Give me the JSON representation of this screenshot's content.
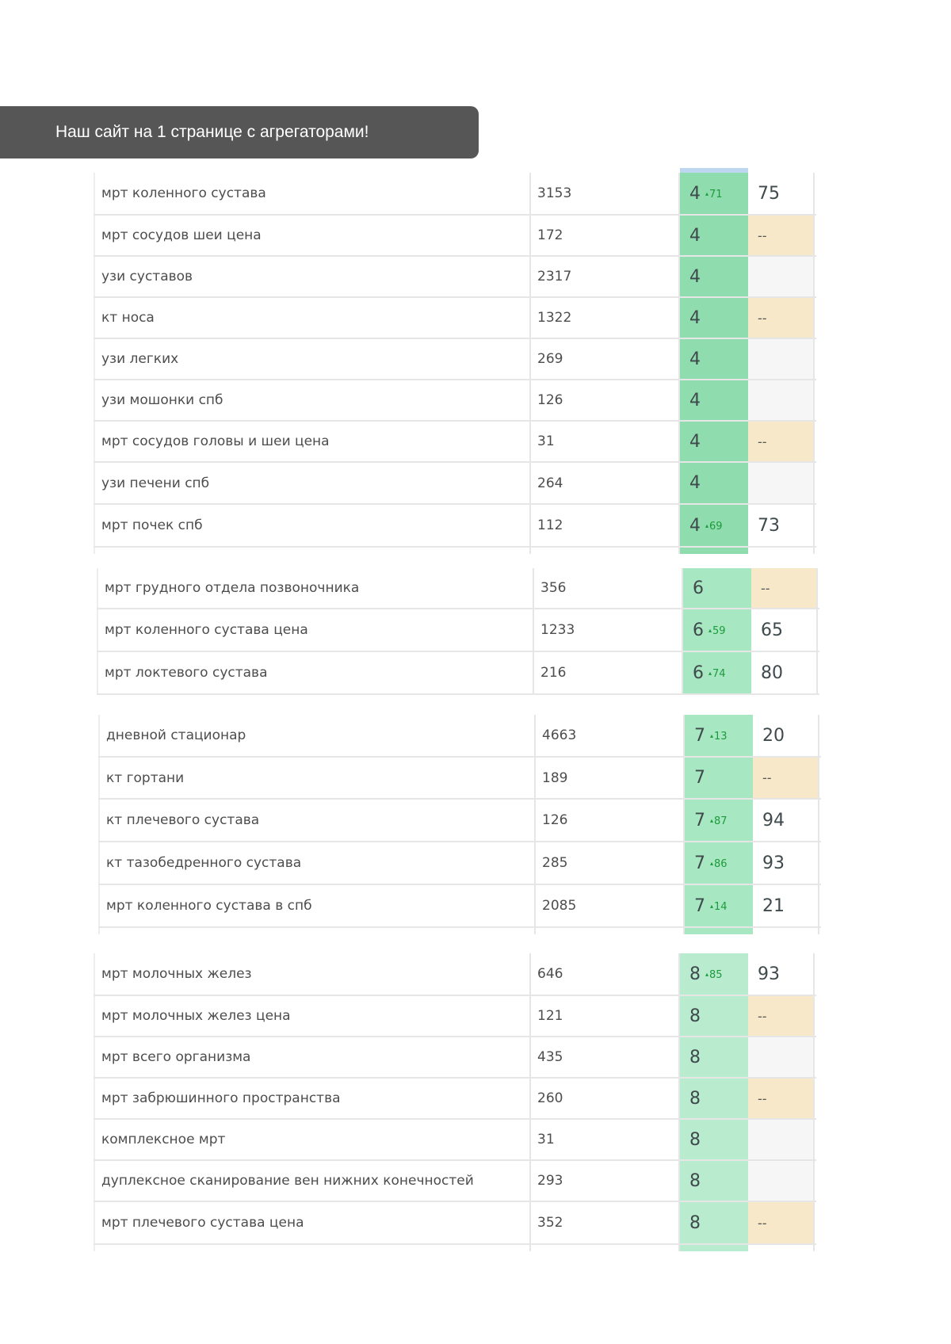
{
  "banner": {
    "text": "Наш сайт на 1 странице с агрегаторами!"
  },
  "blocks": [
    {
      "rows": [
        {
          "keyword": "мрт коленного сустава",
          "volume": "3153",
          "position": "4",
          "delta": "71",
          "ext": "75",
          "ext_type": "num"
        },
        {
          "keyword": "мрт сосудов шеи цена",
          "volume": "172",
          "position": "4",
          "delta": "",
          "ext": "--",
          "ext_type": "dash"
        },
        {
          "keyword": "узи суставов",
          "volume": "2317",
          "position": "4",
          "delta": "",
          "ext": "",
          "ext_type": "empty"
        },
        {
          "keyword": "кт носа",
          "volume": "1322",
          "position": "4",
          "delta": "",
          "ext": "--",
          "ext_type": "dash"
        },
        {
          "keyword": "узи легких",
          "volume": "269",
          "position": "4",
          "delta": "",
          "ext": "",
          "ext_type": "empty"
        },
        {
          "keyword": "узи мошонки спб",
          "volume": "126",
          "position": "4",
          "delta": "",
          "ext": "",
          "ext_type": "empty"
        },
        {
          "keyword": "мрт сосудов головы и шеи цена",
          "volume": "31",
          "position": "4",
          "delta": "",
          "ext": "--",
          "ext_type": "dash"
        },
        {
          "keyword": "узи печени спб",
          "volume": "264",
          "position": "4",
          "delta": "",
          "ext": "",
          "ext_type": "empty"
        },
        {
          "keyword": "мрт почек спб",
          "volume": "112",
          "position": "4",
          "delta": "69",
          "ext": "73",
          "ext_type": "num"
        }
      ]
    },
    {
      "rows": [
        {
          "keyword": "мрт грудного отдела позвоночника",
          "volume": "356",
          "position": "6",
          "delta": "",
          "ext": "--",
          "ext_type": "dash"
        },
        {
          "keyword": "мрт коленного сустава цена",
          "volume": "1233",
          "position": "6",
          "delta": "59",
          "ext": "65",
          "ext_type": "num"
        },
        {
          "keyword": "мрт локтевого сустава",
          "volume": "216",
          "position": "6",
          "delta": "74",
          "ext": "80",
          "ext_type": "num"
        }
      ]
    },
    {
      "rows": [
        {
          "keyword": "дневной стационар",
          "volume": "4663",
          "position": "7",
          "delta": "13",
          "ext": "20",
          "ext_type": "num"
        },
        {
          "keyword": "кт гортани",
          "volume": "189",
          "position": "7",
          "delta": "",
          "ext": "--",
          "ext_type": "dash"
        },
        {
          "keyword": "кт плечевого сустава",
          "volume": "126",
          "position": "7",
          "delta": "87",
          "ext": "94",
          "ext_type": "num"
        },
        {
          "keyword": "кт тазобедренного сустава",
          "volume": "285",
          "position": "7",
          "delta": "86",
          "ext": "93",
          "ext_type": "num"
        },
        {
          "keyword": "мрт коленного сустава в спб",
          "volume": "2085",
          "position": "7",
          "delta": "14",
          "ext": "21",
          "ext_type": "num"
        }
      ]
    },
    {
      "rows": [
        {
          "keyword": "мрт молочных желез",
          "volume": "646",
          "position": "8",
          "delta": "85",
          "ext": "93",
          "ext_type": "num"
        },
        {
          "keyword": "мрт молочных желез цена",
          "volume": "121",
          "position": "8",
          "delta": "",
          "ext": "--",
          "ext_type": "dash"
        },
        {
          "keyword": "мрт всего организма",
          "volume": "435",
          "position": "8",
          "delta": "",
          "ext": "",
          "ext_type": "empty"
        },
        {
          "keyword": "мрт забрюшинного пространства",
          "volume": "260",
          "position": "8",
          "delta": "",
          "ext": "--",
          "ext_type": "dash"
        },
        {
          "keyword": "комплексное мрт",
          "volume": "31",
          "position": "8",
          "delta": "",
          "ext": "",
          "ext_type": "empty"
        },
        {
          "keyword": "дуплексное сканирование вен нижних конечностей",
          "volume": "293",
          "position": "8",
          "delta": "",
          "ext": "",
          "ext_type": "empty"
        },
        {
          "keyword": "мрт плечевого сустава цена",
          "volume": "352",
          "position": "8",
          "delta": "",
          "ext": "--",
          "ext_type": "dash"
        }
      ]
    }
  ]
}
